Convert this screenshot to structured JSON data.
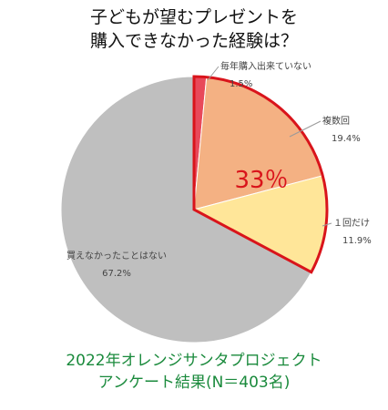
{
  "title_lines": [
    "子どもが望むプレゼントを",
    "購入できなかった経験は？"
  ],
  "footer_lines": [
    "2022年オレンジサンタプロジェクト",
    "アンケート結果(N＝403名)"
  ],
  "footer_color": "#1a8a3c",
  "highlight": {
    "text": "33％",
    "color": "#d9141b"
  },
  "chart_data": {
    "type": "pie",
    "title": "",
    "slices": [
      {
        "label": "毎年購入出来ていない",
        "value": 1.5,
        "value_text": "1.5%",
        "color": "#e8495a"
      },
      {
        "label": "複数回",
        "value": 19.4,
        "value_text": "19.4%",
        "color": "#f4b183"
      },
      {
        "label": "１回だけ",
        "value": 11.9,
        "value_text": "11.9%",
        "color": "#ffe699"
      },
      {
        "label": "買えなかったことはない",
        "value": 67.2,
        "value_text": "67.2%",
        "color": "#bfbfbf"
      }
    ],
    "start_angle": "12 o'clock, clockwise",
    "outline_color": "#d9141b"
  }
}
